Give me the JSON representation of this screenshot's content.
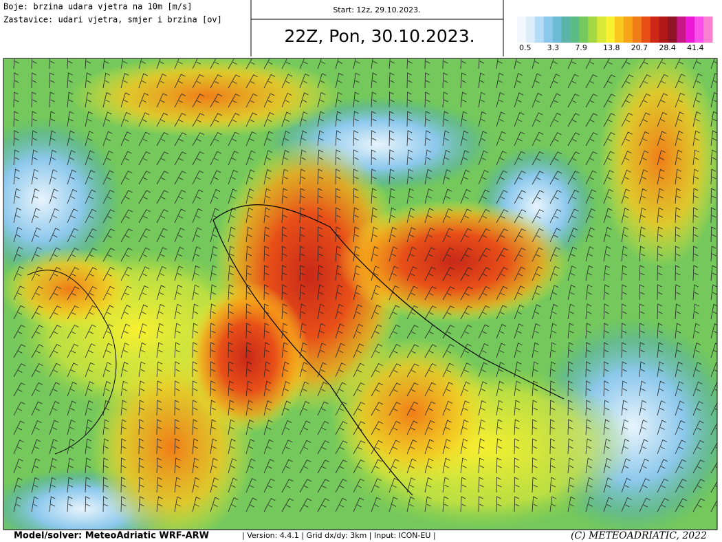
{
  "header": {
    "legend_lines": [
      "Boje: brzina udara vjetra na 10m [m/s]",
      "Zastavice: udari vjetra, smjer i brzina [ov]"
    ],
    "start": "Start: 12z, 29.10.2023.",
    "title": "22Z, Pon, 30.10.2023."
  },
  "colorbar": {
    "colors": [
      "#f4f8fc",
      "#dcecf8",
      "#b4dcf4",
      "#8cc8ec",
      "#6cbcd8",
      "#5cb4a8",
      "#5cbc84",
      "#74c85c",
      "#a4d844",
      "#d8e838",
      "#f8f030",
      "#f8c820",
      "#f8a418",
      "#f07c18",
      "#e85018",
      "#d02818",
      "#b01818",
      "#901428",
      "#c81888",
      "#f018d8",
      "#f850e8",
      "#f880d0"
    ],
    "labels": [
      "0.5",
      "3.3",
      "7.9",
      "13.8",
      "20.7",
      "28.4",
      "41.4"
    ]
  },
  "footer": {
    "model": "Model/solver: MeteoAdriatic WRF-ARW",
    "version": "| Version: 4.4.1 | Grid dx/dy: 3km | Input: ICON-EU |",
    "copyright": "(C) METEOADRIATIC, 2022"
  }
}
